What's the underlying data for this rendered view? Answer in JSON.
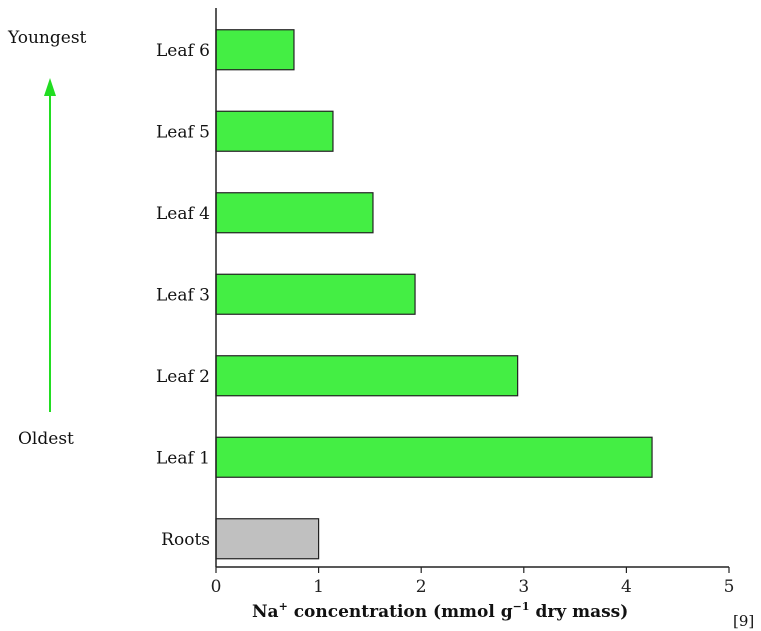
{
  "chart_data": {
    "type": "bar",
    "orientation": "horizontal",
    "categories": [
      "Leaf 6",
      "Leaf 5",
      "Leaf 4",
      "Leaf 3",
      "Leaf 2",
      "Leaf 1",
      "Roots"
    ],
    "values": [
      0.76,
      1.14,
      1.53,
      1.94,
      2.94,
      4.25,
      1.0
    ],
    "xlabel_main": "Na",
    "xlabel_sup": "+",
    "xlabel_mid": " concentration (mmol g",
    "xlabel_sup2": "−1",
    "xlabel_end": " dry mass)",
    "xlim": [
      0,
      5
    ],
    "xticks": [
      "0",
      "1",
      "2",
      "3",
      "4",
      "5"
    ],
    "grid": false,
    "side_labels": {
      "top": "Youngest",
      "bottom": "Oldest"
    },
    "reference": "[9]",
    "colors": {
      "leaf": "#44ee44",
      "roots": "#c0c0c0",
      "arrow": "#22dd22",
      "axis": "#222222"
    }
  }
}
